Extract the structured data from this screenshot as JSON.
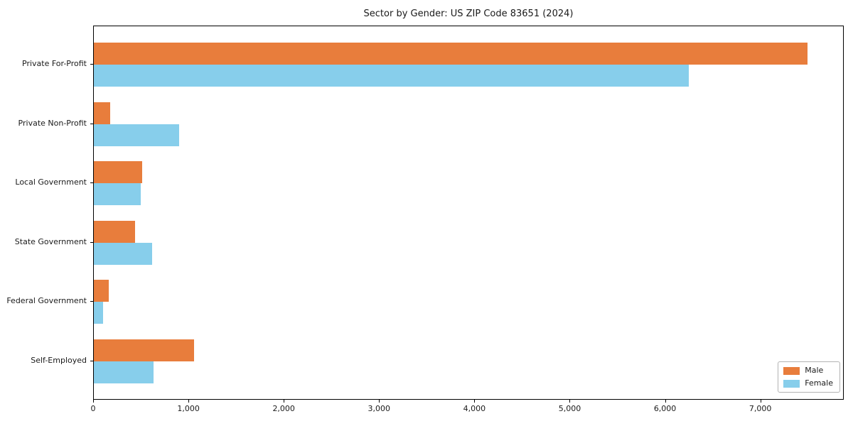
{
  "chart_data": {
    "type": "bar",
    "orientation": "horizontal",
    "title": "Sector by Gender: US ZIP Code 83651 (2024)",
    "categories": [
      "Private For-Profit",
      "Private Non-Profit",
      "Local Government",
      "State Government",
      "Federal Government",
      "Self-Employed"
    ],
    "series": [
      {
        "name": "Male",
        "color": "#e87d3c",
        "values": [
          7500,
          170,
          510,
          430,
          160,
          1050
        ]
      },
      {
        "name": "Female",
        "color": "#87ceeb",
        "values": [
          6250,
          900,
          490,
          610,
          100,
          630
        ]
      }
    ],
    "xlabel": "",
    "ylabel": "",
    "xlim": [
      0,
      7875
    ],
    "xticks": [
      0,
      1000,
      2000,
      3000,
      4000,
      5000,
      6000,
      7000
    ],
    "xtick_labels": [
      "0",
      "1,000",
      "2,000",
      "3,000",
      "4,000",
      "5,000",
      "6,000",
      "7,000"
    ],
    "legend": {
      "position": "lower-right",
      "entries": [
        "Male",
        "Female"
      ]
    },
    "grid": false,
    "plot_background": "#ffffff",
    "axis_color": "#000000",
    "text_color": "#1a1a1a"
  }
}
